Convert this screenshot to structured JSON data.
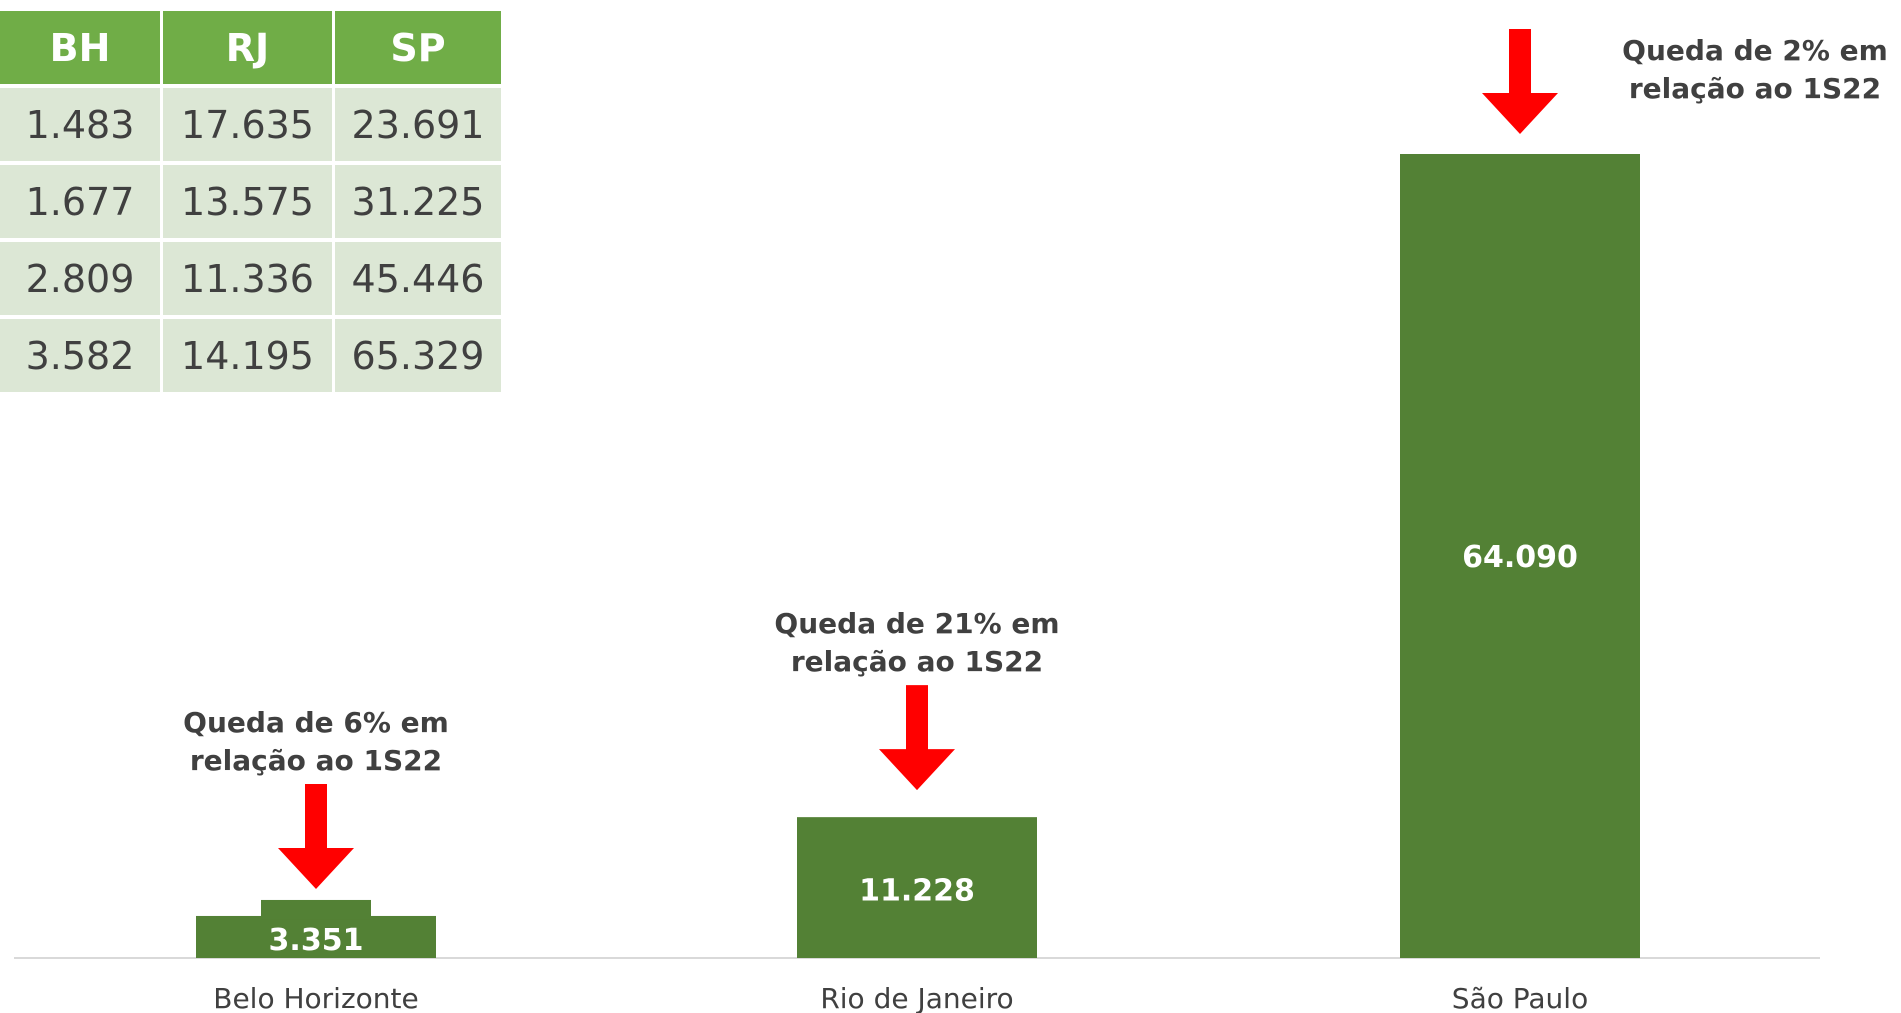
{
  "table": {
    "headers": [
      "BH",
      "RJ",
      "SP"
    ],
    "rows": [
      [
        "1.483",
        "17.635",
        "23.691"
      ],
      [
        "1.677",
        "13.575",
        "31.225"
      ],
      [
        "2.809",
        "11.336",
        "45.446"
      ],
      [
        "3.582",
        "14.195",
        "65.329"
      ]
    ]
  },
  "chart_data": {
    "type": "bar",
    "categories": [
      "Belo Horizonte",
      "Rio de Janeiro",
      "São Paulo"
    ],
    "series": [
      {
        "values": [
          3351,
          11228,
          64090
        ]
      }
    ],
    "value_labels": [
      "3.351",
      "11.228",
      "64.090"
    ],
    "annotations": [
      {
        "category": "Belo Horizonte",
        "lines": [
          "Queda de 6% em",
          "relação ao 1S22"
        ],
        "arrow": "down"
      },
      {
        "category": "Rio de Janeiro",
        "lines": [
          "Queda de 21% em",
          "relação ao 1S22"
        ],
        "arrow": "down"
      },
      {
        "category": "São Paulo",
        "lines": [
          "Queda de 2% em",
          "relação ao 1S22"
        ],
        "arrow": "down"
      }
    ],
    "title": "",
    "xlabel": "",
    "ylabel": "",
    "ylim": [
      0,
      64090
    ],
    "grid": false,
    "legend": "none",
    "colors": {
      "bar": "#538135",
      "arrow": "#ff0000",
      "axis": "#d9d9d9",
      "tick_text": "#404040",
      "annotation_text": "#404040",
      "value_text": "#ffffff"
    }
  }
}
